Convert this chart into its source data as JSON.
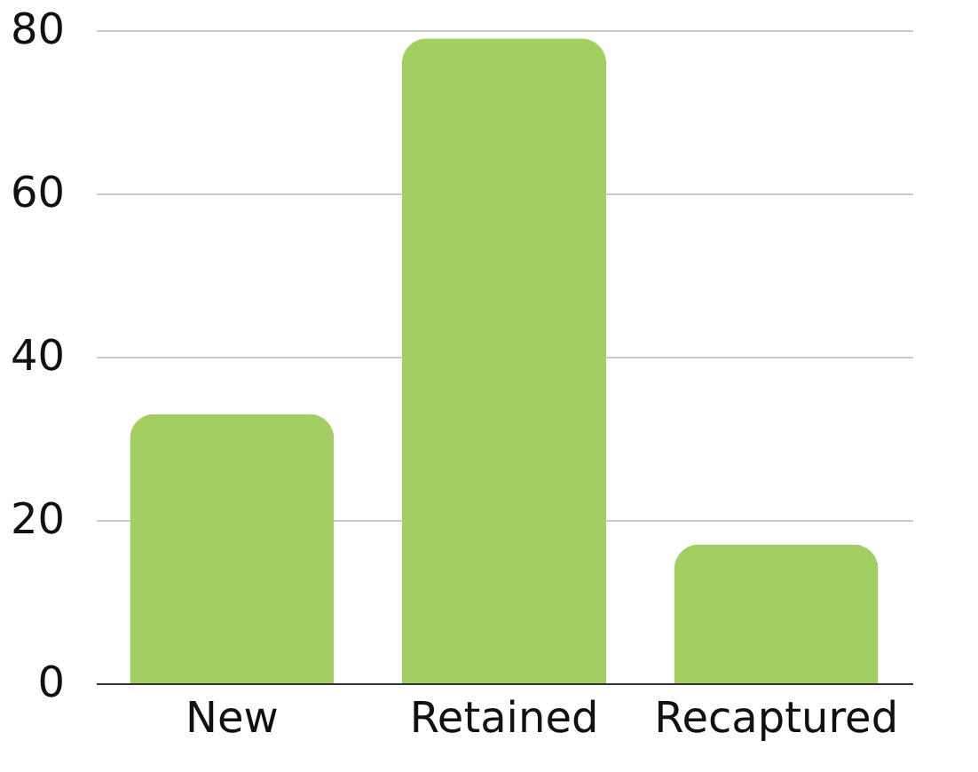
{
  "chart_data": {
    "type": "bar",
    "categories": [
      "New",
      "Retained",
      "Recaptured"
    ],
    "values": [
      33,
      79,
      17
    ],
    "color": "#a3cf62",
    "ylim": [
      0,
      80
    ],
    "yticks": [
      0,
      20,
      40,
      60,
      80
    ],
    "grid": "y"
  }
}
